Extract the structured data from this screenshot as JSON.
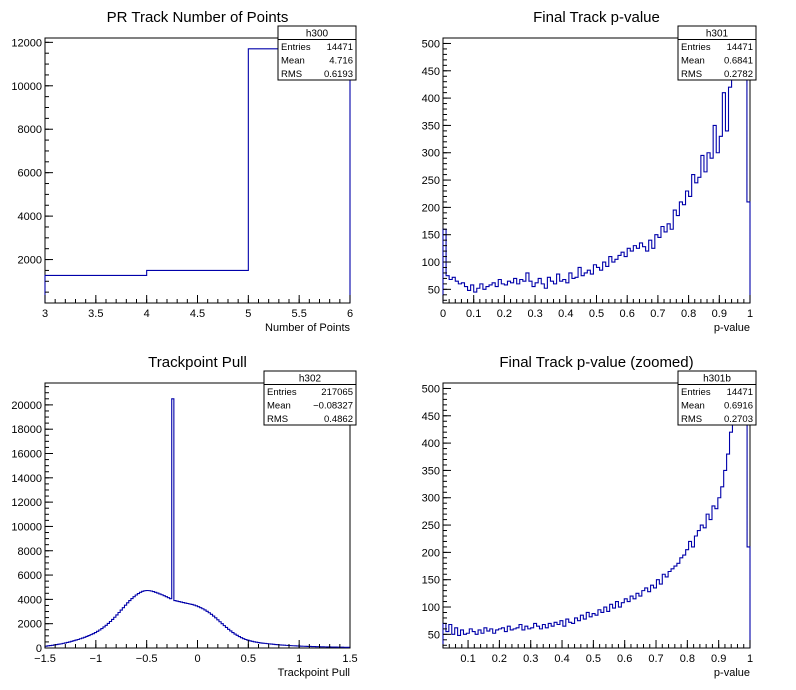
{
  "chart_data": [
    {
      "type": "histogram",
      "title": "PR Track Number of Points",
      "xlabel": "Number of Points",
      "ylabel": "",
      "xlim": [
        3,
        6
      ],
      "ylim": [
        0,
        12200
      ],
      "x_ticks": [
        "3",
        "3.5",
        "4",
        "4.5",
        "5",
        "5.5",
        "6"
      ],
      "y_ticks": [
        "2000",
        "4000",
        "6000",
        "8000",
        "10000",
        "12000"
      ],
      "bin_edges": [
        3,
        4,
        5,
        6
      ],
      "values": [
        1270,
        1500,
        11700
      ],
      "stats": {
        "name": "h300",
        "entries": "14471",
        "mean": "4.716",
        "rms": "0.6193"
      },
      "stat_labels": {
        "entries": "Entries",
        "mean": "Mean",
        "rms": "RMS"
      },
      "line_color": "#0000aa"
    },
    {
      "type": "histogram",
      "title": "Final Track p-value",
      "xlabel": "p-value",
      "ylabel": "",
      "xlim": [
        0,
        1
      ],
      "ylim": [
        25,
        510
      ],
      "x_ticks": [
        "0",
        "0.1",
        "0.2",
        "0.3",
        "0.4",
        "0.5",
        "0.6",
        "0.7",
        "0.8",
        "0.9",
        "1"
      ],
      "y_ticks": [
        "50",
        "100",
        "150",
        "200",
        "250",
        "300",
        "350",
        "400",
        "450",
        "500"
      ],
      "bin_edges": [
        0,
        1
      ],
      "values": [
        160,
        75,
        68,
        72,
        65,
        60,
        62,
        55,
        48,
        58,
        45,
        52,
        60,
        50,
        55,
        58,
        62,
        55,
        68,
        60,
        58,
        65,
        62,
        70,
        60,
        68,
        65,
        80,
        65,
        55,
        62,
        70,
        60,
        52,
        72,
        65,
        60,
        78,
        65,
        68,
        62,
        80,
        70,
        72,
        90,
        75,
        80,
        85,
        78,
        95,
        90,
        85,
        100,
        92,
        110,
        100,
        105,
        112,
        118,
        110,
        125,
        120,
        130,
        125,
        135,
        128,
        120,
        140,
        125,
        150,
        145,
        165,
        155,
        170,
        160,
        195,
        185,
        210,
        205,
        230,
        220,
        260,
        245,
        255,
        295,
        265,
        300,
        290,
        350,
        300,
        330,
        410,
        340,
        420,
        435,
        450,
        500,
        510,
        480,
        210
      ],
      "stats": {
        "name": "h301",
        "entries": "14471",
        "mean": "0.6841",
        "rms": "0.2782"
      },
      "stat_labels": {
        "entries": "Entries",
        "mean": "Mean",
        "rms": "RMS"
      },
      "line_color": "#0000aa"
    },
    {
      "type": "histogram",
      "title": "Trackpoint Pull",
      "xlabel": "Trackpoint Pull",
      "ylabel": "",
      "xlim": [
        -1.5,
        1.5
      ],
      "ylim": [
        0,
        21800
      ],
      "x_ticks": [
        "−1.5",
        "−1",
        "−0.5",
        "0",
        "0.5",
        "1",
        "1.5"
      ],
      "y_ticks": [
        "0",
        "2000",
        "4000",
        "6000",
        "8000",
        "10000",
        "12000",
        "14000",
        "16000",
        "18000",
        "20000"
      ],
      "bin_edges": [
        -1.5,
        1.5
      ],
      "values": [
        150,
        180,
        200,
        220,
        250,
        280,
        310,
        340,
        380,
        420,
        460,
        500,
        550,
        600,
        650,
        700,
        760,
        820,
        880,
        950,
        1020,
        1100,
        1180,
        1270,
        1370,
        1480,
        1600,
        1730,
        1870,
        2020,
        2180,
        2350,
        2530,
        2720,
        2920,
        3120,
        3320,
        3520,
        3720,
        3900,
        4070,
        4220,
        4360,
        4480,
        4580,
        4660,
        4710,
        4730,
        4720,
        4690,
        4640,
        4580,
        4520,
        4450,
        4380,
        4300,
        4220,
        4140,
        4060,
        20500,
        3900,
        3860,
        3820,
        3780,
        3740,
        3700,
        3660,
        3620,
        3580,
        3530,
        3470,
        3400,
        3320,
        3230,
        3130,
        3020,
        2900,
        2770,
        2630,
        2480,
        2320,
        2160,
        2000,
        1840,
        1690,
        1540,
        1400,
        1270,
        1150,
        1040,
        940,
        850,
        770,
        700,
        640,
        590,
        550,
        510,
        480,
        450,
        420,
        400,
        380,
        360,
        340,
        320,
        300,
        285,
        270,
        255,
        240,
        228,
        216,
        205,
        195,
        185,
        176,
        168,
        160,
        152,
        145,
        138,
        132,
        126,
        120,
        115,
        110,
        105,
        100,
        96,
        92,
        88,
        84,
        80,
        77,
        74,
        71,
        68,
        65,
        62,
        60,
        58
      ],
      "stats": {
        "name": "h302",
        "entries": "217065",
        "mean": "−0.08327",
        "rms": "0.4862"
      },
      "stat_labels": {
        "entries": "Entries",
        "mean": "Mean",
        "rms": "RMS"
      },
      "line_color": "#0000aa"
    },
    {
      "type": "histogram",
      "title": "Final Track p-value (zoomed)",
      "xlabel": "p-value",
      "ylabel": "",
      "xlim": [
        0.02,
        1
      ],
      "ylim": [
        25,
        510
      ],
      "x_ticks": [
        "0.1",
        "0.2",
        "0.3",
        "0.4",
        "0.5",
        "0.6",
        "0.7",
        "0.8",
        "0.9",
        "1"
      ],
      "y_ticks": [
        "50",
        "100",
        "150",
        "200",
        "250",
        "300",
        "350",
        "400",
        "450",
        "500"
      ],
      "bin_edges": [
        0.02,
        1
      ],
      "values": [
        70,
        55,
        68,
        50,
        62,
        48,
        58,
        50,
        52,
        60,
        55,
        50,
        58,
        52,
        62,
        56,
        60,
        52,
        58,
        60,
        62,
        55,
        65,
        58,
        60,
        62,
        68,
        58,
        65,
        60,
        62,
        70,
        65,
        60,
        68,
        62,
        70,
        65,
        72,
        68,
        75,
        65,
        78,
        72,
        70,
        80,
        75,
        85,
        78,
        90,
        82,
        88,
        85,
        95,
        90,
        100,
        92,
        105,
        98,
        110,
        100,
        108,
        115,
        110,
        120,
        115,
        125,
        120,
        130,
        135,
        128,
        140,
        135,
        150,
        142,
        160,
        155,
        165,
        170,
        175,
        180,
        190,
        195,
        205,
        220,
        210,
        230,
        240,
        250,
        245,
        270,
        260,
        285,
        280,
        300,
        320,
        350,
        380,
        420,
        450,
        440,
        480,
        490,
        500,
        210
      ],
      "stats": {
        "name": "h301b",
        "entries": "14471",
        "mean": "0.6916",
        "rms": "0.2703"
      },
      "stat_labels": {
        "entries": "Entries",
        "mean": "Mean",
        "rms": "RMS"
      },
      "line_color": "#0000aa"
    }
  ]
}
